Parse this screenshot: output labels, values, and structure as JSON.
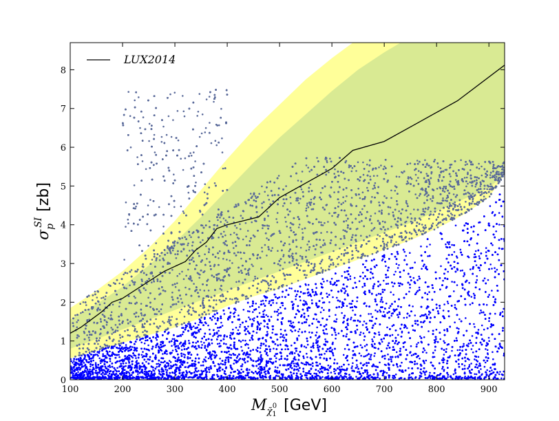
{
  "chart_data": {
    "type": "scatter",
    "xlabel_symbol": "M",
    "xlabel_subscript": "χ̃",
    "xlabel_subsub": "1",
    "xlabel_sup": "0",
    "xlabel_unit": "[GeV]",
    "ylabel_symbol": "σ",
    "ylabel_subscript": "p",
    "ylabel_sup": "SI",
    "ylabel_unit": "[zb]",
    "xlim": [
      100,
      930
    ],
    "ylim": [
      0,
      8.7
    ],
    "xticks": [
      100,
      200,
      300,
      400,
      500,
      600,
      700,
      800,
      900
    ],
    "yticks": [
      0,
      1,
      2,
      3,
      4,
      5,
      6,
      7,
      8
    ],
    "legend": {
      "placement": "top-left",
      "label": "LUX2014",
      "color": "#000000"
    },
    "series": [
      {
        "name": "LUX2014",
        "kind": "line",
        "color": "#000000",
        "x": [
          100,
          120,
          140,
          160,
          180,
          200,
          240,
          280,
          320,
          340,
          360,
          380,
          400,
          460,
          500,
          560,
          600,
          640,
          700,
          760,
          840,
          930
        ],
        "y": [
          1.2,
          1.35,
          1.55,
          1.75,
          2.0,
          2.1,
          2.45,
          2.8,
          3.05,
          3.35,
          3.55,
          3.9,
          4.0,
          4.2,
          4.7,
          5.15,
          5.45,
          5.92,
          6.15,
          6.6,
          7.2,
          8.12
        ]
      },
      {
        "name": "",
        "kind": "band",
        "color": "#ffff99",
        "x": [
          100,
          150,
          200,
          250,
          300,
          350,
          400,
          450,
          500,
          550,
          600,
          650,
          700,
          750,
          800,
          850,
          900,
          930
        ],
        "low": [
          0.55,
          0.75,
          0.95,
          1.15,
          1.35,
          1.6,
          1.9,
          2.15,
          2.35,
          2.6,
          2.85,
          3.1,
          3.35,
          3.6,
          3.9,
          4.25,
          4.7,
          5.3
        ],
        "high": [
          1.85,
          2.3,
          2.8,
          3.4,
          4.1,
          4.9,
          5.7,
          6.45,
          7.1,
          7.75,
          8.3,
          8.8,
          9.2,
          9.6,
          10.0,
          10.4,
          10.8,
          11.0
        ]
      },
      {
        "name": "",
        "kind": "band",
        "color": "#d9ea93",
        "x": [
          100,
          150,
          200,
          250,
          300,
          350,
          400,
          450,
          500,
          550,
          600,
          650,
          700,
          750,
          800,
          850,
          900,
          930
        ],
        "low": [
          0.8,
          1.05,
          1.3,
          1.55,
          1.8,
          2.05,
          2.3,
          2.55,
          2.8,
          3.05,
          3.3,
          3.55,
          3.8,
          4.05,
          4.35,
          4.65,
          4.95,
          5.3
        ],
        "high": [
          1.55,
          1.95,
          2.4,
          2.95,
          3.55,
          4.2,
          4.9,
          5.6,
          6.25,
          6.85,
          7.45,
          8.0,
          8.45,
          8.85,
          9.2,
          9.6,
          10.0,
          10.3
        ]
      },
      {
        "name": "",
        "kind": "scatter",
        "color": "#0000ff",
        "excluded_color": "#5a6a9a",
        "n_points": 26000
      }
    ]
  }
}
